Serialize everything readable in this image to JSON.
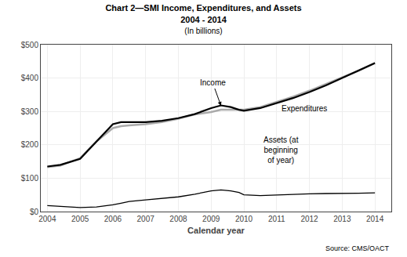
{
  "chart_data": {
    "type": "line",
    "title": "Chart 2—SMI Income, Expenditures, and Assets\n2004 - 2014",
    "subtitle": "(In billions)",
    "xlabel": "Calendar year",
    "source": "Source: CMS/OACT",
    "x": [
      2004,
      2004.4,
      2005,
      2005.5,
      2006,
      2006.25,
      2006.5,
      2007,
      2007.5,
      2008,
      2008.5,
      2009,
      2009.3,
      2009.6,
      2009.85,
      2010,
      2010.5,
      2011,
      2011.5,
      2012,
      2012.5,
      2013,
      2013.5,
      2014
    ],
    "series": [
      {
        "name": "Expenditures",
        "color": "#aaaaaa",
        "values": [
          133,
          138,
          160,
          210,
          250,
          256,
          258,
          262,
          268,
          278,
          291,
          298,
          305,
          305,
          305,
          305,
          313,
          328,
          344,
          362,
          382,
          402,
          422,
          445
        ]
      },
      {
        "name": "Income",
        "color": "#000000",
        "values": [
          135,
          140,
          158,
          210,
          262,
          268,
          268,
          268,
          272,
          280,
          292,
          310,
          318,
          313,
          305,
          302,
          310,
          325,
          340,
          358,
          378,
          400,
          422,
          445
        ]
      },
      {
        "name": "Assets",
        "color": "#000000",
        "values": [
          18,
          16,
          12,
          14,
          20,
          25,
          30,
          35,
          40,
          44,
          52,
          62,
          65,
          62,
          57,
          50,
          48,
          50,
          52,
          53,
          54,
          54,
          55,
          56
        ]
      }
    ],
    "annotations": [
      {
        "text": "Income",
        "x": 2009.3,
        "y": 317,
        "text_x": 2009.05,
        "text_y": 385
      },
      {
        "text": "Expenditures",
        "x": 2011.1,
        "y": 308
      },
      {
        "text": "Assets (at\nbeginning\nof year)",
        "x": 2010.55,
        "y": 185
      }
    ],
    "xlim": [
      2003.8,
      2014.5
    ],
    "xticks": [
      2004,
      2005,
      2006,
      2007,
      2008,
      2009,
      2010,
      2011,
      2012,
      2013,
      2014
    ],
    "ylim": [
      0,
      500
    ],
    "yticks": [
      {
        "value": 0,
        "label": "$0"
      },
      {
        "value": 100,
        "label": "$100"
      },
      {
        "value": 200,
        "label": "$200"
      },
      {
        "value": 300,
        "label": "$300"
      },
      {
        "value": 400,
        "label": "$400"
      },
      {
        "value": 500,
        "label": "$500"
      }
    ],
    "grid": true
  }
}
